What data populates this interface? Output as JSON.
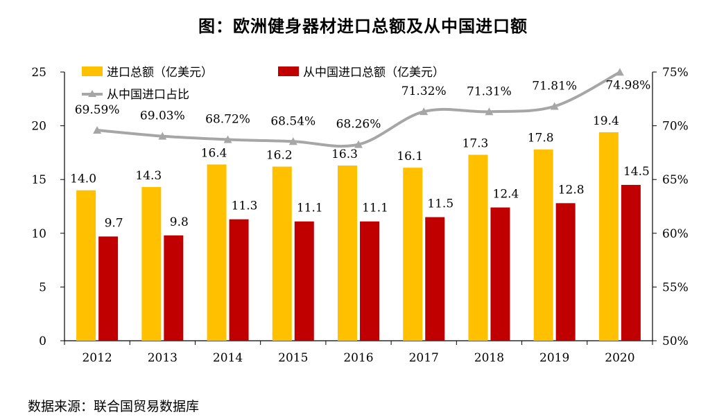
{
  "title": "图：欧洲健身器材进口总额及从中国进口额",
  "source": "数据来源：联合国贸易数据库",
  "colors": {
    "total": "#FFC000",
    "china": "#C00000",
    "share": "#A6A6A6",
    "axis": "#000000"
  },
  "chart_data": {
    "type": "bar",
    "categories": [
      "2012",
      "2013",
      "2014",
      "2015",
      "2016",
      "2017",
      "2018",
      "2019",
      "2020"
    ],
    "series": [
      {
        "name": "进口总额（亿美元）",
        "type": "bar",
        "axis": "left",
        "values": [
          14.0,
          14.3,
          16.4,
          16.2,
          16.3,
          16.1,
          17.3,
          17.8,
          19.4
        ],
        "labels": [
          "14.0",
          "14.3",
          "16.4",
          "16.2",
          "16.3",
          "16.1",
          "17.3",
          "17.8",
          "19.4"
        ]
      },
      {
        "name": "从中国进口总额（亿美元）",
        "type": "bar",
        "axis": "left",
        "values": [
          9.7,
          9.8,
          11.3,
          11.1,
          11.1,
          11.5,
          12.4,
          12.8,
          14.5
        ],
        "labels": [
          "9.7",
          "9.8",
          "11.3",
          "11.1",
          "11.1",
          "11.5",
          "12.4",
          "12.8",
          "14.5"
        ]
      },
      {
        "name": "从中国进口占比",
        "type": "line",
        "axis": "right",
        "values": [
          69.59,
          69.03,
          68.72,
          68.54,
          68.26,
          71.32,
          71.31,
          71.81,
          74.98
        ],
        "labels": [
          "69.59%",
          "69.03%",
          "68.72%",
          "68.54%",
          "68.26%",
          "71.32%",
          "71.31%",
          "71.81%",
          "74.98%"
        ]
      }
    ],
    "ylim": [
      0,
      25
    ],
    "yticks": [
      "0",
      "5",
      "10",
      "15",
      "20",
      "25"
    ],
    "y2lim": [
      50,
      75
    ],
    "y2ticks": [
      "50%",
      "55%",
      "60%",
      "65%",
      "70%",
      "75%"
    ],
    "legend": "top-left",
    "grid": false
  }
}
